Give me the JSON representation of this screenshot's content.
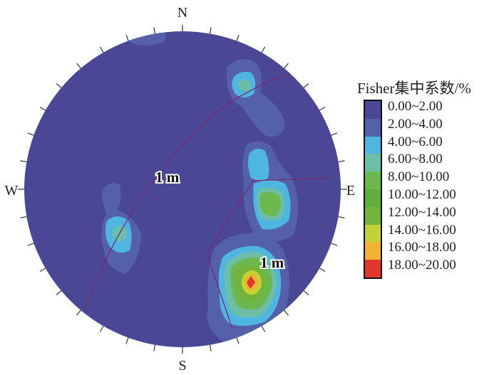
{
  "chart_data": {
    "type": "heatmap",
    "subtype": "stereonet-contour",
    "directions": {
      "north": "N",
      "south": "S",
      "east": "E",
      "west": "W"
    },
    "annotations": [
      "1 m",
      "1 m"
    ],
    "legend": {
      "title": "Fisher集中系数/%",
      "placement": "right",
      "bins": [
        {
          "label": "0.00~2.00",
          "color": "#4a4896"
        },
        {
          "label": "2.00~4.00",
          "color": "#5460aa"
        },
        {
          "label": "4.00~6.00",
          "color": "#4fb6e2"
        },
        {
          "label": "6.00~8.00",
          "color": "#6cbfa6"
        },
        {
          "label": "8.00~10.00",
          "color": "#6db84c"
        },
        {
          "label": "10.00~12.00",
          "color": "#62ae3c"
        },
        {
          "label": "12.00~14.00",
          "color": "#74b43a"
        },
        {
          "label": "14.00~16.00",
          "color": "#c4d236"
        },
        {
          "label": "16.00~18.00",
          "color": "#f2b232"
        },
        {
          "label": "18.00~20.00",
          "color": "#e2352e"
        }
      ]
    },
    "line_color": "#7a2a6a"
  }
}
